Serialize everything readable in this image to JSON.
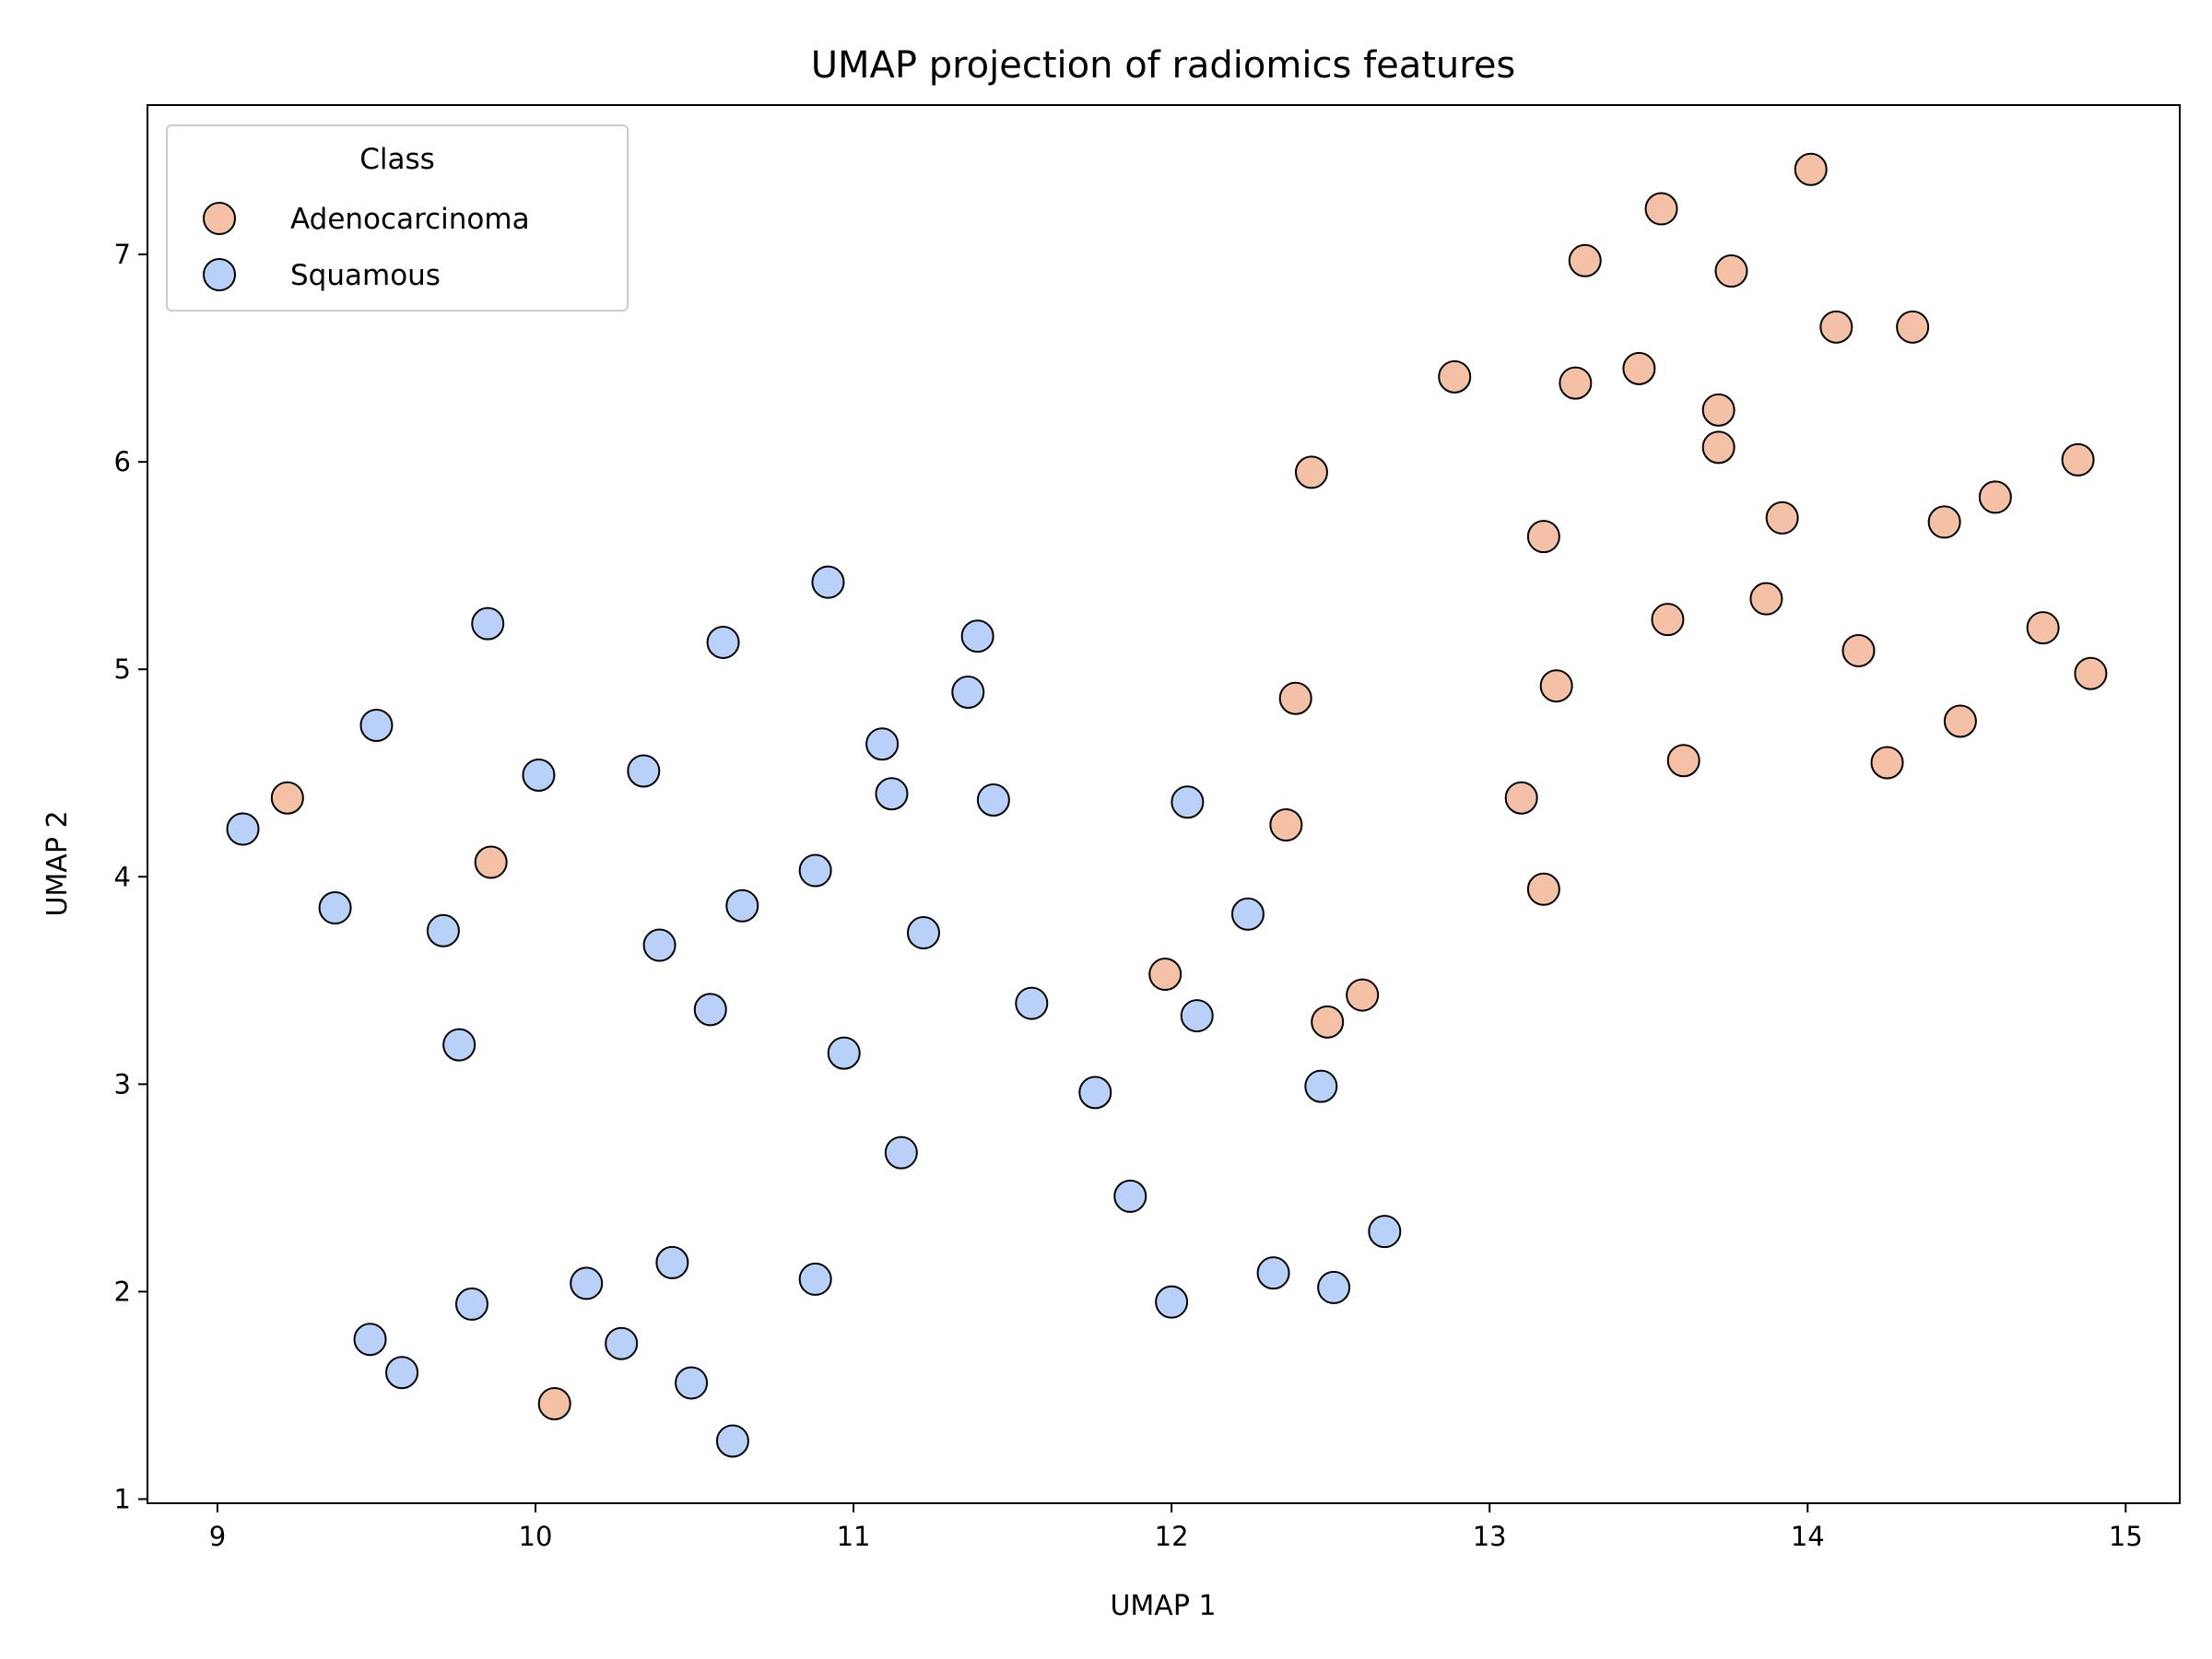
{
  "chart_data": {
    "type": "scatter",
    "title": "UMAP projection of radiomics features",
    "xlabel": "UMAP 1",
    "ylabel": "UMAP 2",
    "xlim": [
      8.78,
      15.17
    ],
    "ylim": [
      0.98,
      7.72
    ],
    "x_ticks": [
      9,
      10,
      11,
      12,
      13,
      14,
      15
    ],
    "y_ticks": [
      1,
      2,
      3,
      4,
      5,
      6,
      7
    ],
    "grid": false,
    "legend": {
      "title": "Class",
      "placement": "top-left"
    },
    "series": [
      {
        "name": "Adenocarcinoma",
        "color": "#f4c1a7",
        "points": [
          [
            9.22,
            4.38
          ],
          [
            9.86,
            4.07
          ],
          [
            10.06,
            1.46
          ],
          [
            11.98,
            3.53
          ],
          [
            12.49,
            3.3
          ],
          [
            12.6,
            3.43
          ],
          [
            12.36,
            4.25
          ],
          [
            12.39,
            4.86
          ],
          [
            12.44,
            5.95
          ],
          [
            12.89,
            6.41
          ],
          [
            13.1,
            4.38
          ],
          [
            13.17,
            3.94
          ],
          [
            13.17,
            5.64
          ],
          [
            13.21,
            4.92
          ],
          [
            13.27,
            6.38
          ],
          [
            13.3,
            6.97
          ],
          [
            13.47,
            6.45
          ],
          [
            13.54,
            7.22
          ],
          [
            13.56,
            5.24
          ],
          [
            13.61,
            4.56
          ],
          [
            13.72,
            6.25
          ],
          [
            13.72,
            6.07
          ],
          [
            13.76,
            6.92
          ],
          [
            13.87,
            5.34
          ],
          [
            13.92,
            5.73
          ],
          [
            14.01,
            7.41
          ],
          [
            14.09,
            6.65
          ],
          [
            14.16,
            5.09
          ],
          [
            14.25,
            4.55
          ],
          [
            14.33,
            6.65
          ],
          [
            14.43,
            5.71
          ],
          [
            14.48,
            4.75
          ],
          [
            14.59,
            5.83
          ],
          [
            14.74,
            5.2
          ],
          [
            14.85,
            6.01
          ],
          [
            14.89,
            4.98
          ]
        ]
      },
      {
        "name": "Squamous",
        "color": "#b9d0f9",
        "points": [
          [
            9.08,
            4.23
          ],
          [
            9.37,
            3.85
          ],
          [
            9.5,
            4.73
          ],
          [
            9.48,
            1.77
          ],
          [
            9.58,
            1.61
          ],
          [
            9.71,
            3.74
          ],
          [
            9.76,
            3.19
          ],
          [
            9.8,
            1.94
          ],
          [
            9.85,
            5.22
          ],
          [
            10.01,
            4.49
          ],
          [
            10.16,
            2.04
          ],
          [
            10.27,
            1.75
          ],
          [
            10.34,
            4.51
          ],
          [
            10.39,
            3.67
          ],
          [
            10.43,
            2.14
          ],
          [
            10.49,
            1.56
          ],
          [
            10.55,
            3.36
          ],
          [
            10.59,
            5.13
          ],
          [
            10.62,
            1.28
          ],
          [
            10.65,
            3.86
          ],
          [
            10.88,
            4.03
          ],
          [
            10.88,
            2.06
          ],
          [
            10.92,
            5.42
          ],
          [
            10.97,
            3.15
          ],
          [
            11.09,
            4.64
          ],
          [
            11.12,
            4.4
          ],
          [
            11.15,
            2.67
          ],
          [
            11.22,
            3.73
          ],
          [
            11.36,
            4.89
          ],
          [
            11.39,
            5.16
          ],
          [
            11.44,
            4.37
          ],
          [
            11.56,
            3.39
          ],
          [
            11.76,
            2.96
          ],
          [
            11.87,
            2.46
          ],
          [
            12.0,
            1.95
          ],
          [
            12.05,
            4.36
          ],
          [
            12.08,
            3.33
          ],
          [
            12.24,
            3.82
          ],
          [
            12.32,
            2.09
          ],
          [
            12.47,
            2.99
          ],
          [
            12.51,
            2.02
          ],
          [
            12.67,
            2.29
          ]
        ]
      }
    ]
  }
}
